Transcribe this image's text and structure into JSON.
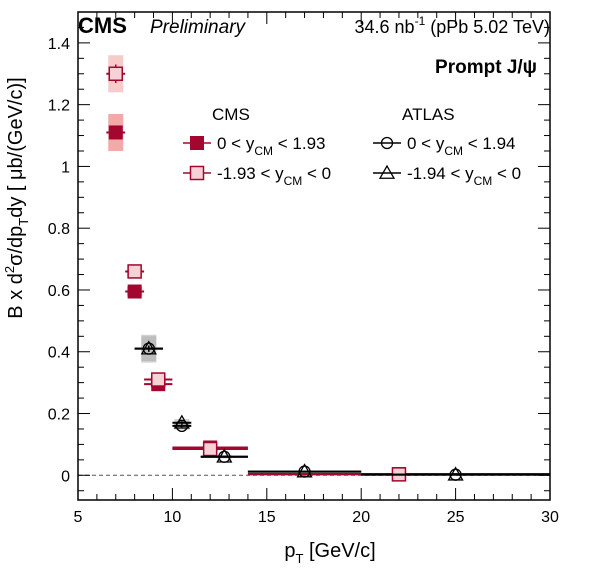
{
  "header": {
    "experiment": "CMS",
    "status": "Preliminary",
    "lumi_value": "34.6 nb",
    "lumi_exp": "-1",
    "lumi_tail": " (pPb 5.02 TeV)"
  },
  "chart_data": {
    "type": "scatter",
    "title": "Prompt J/ψ",
    "xlabel_main": "p",
    "xlabel_sub": "T",
    "xlabel_tail": " [GeV/c]",
    "ylabel_parts": [
      "B x d",
      "2",
      "σ/dp",
      "T",
      "dy [ μb/(GeV/c)]"
    ],
    "xlim": [
      5,
      30
    ],
    "ylim": [
      -0.08,
      1.5
    ],
    "x_ticks": [
      5,
      10,
      15,
      20,
      25,
      30
    ],
    "y_ticks": [
      0,
      0.2,
      0.4,
      0.6,
      0.8,
      1,
      1.2,
      1.4
    ],
    "y_tick_labels": [
      "0",
      "0.2",
      "0.4",
      "0.6",
      "0.8",
      "1",
      "1.2",
      "1.4"
    ],
    "legend": {
      "placement": "top-right",
      "cms_header": "CMS",
      "atlas_header": "ATLAS"
    },
    "colors": {
      "cms": "#a3062e",
      "cms_open_fill": "#f6d2d6",
      "cms_syst": "#f08c8c",
      "atlas_syst": "#b0b0b0"
    },
    "series": [
      {
        "name": "0 < yCM < 1.93",
        "label": {
          "pre": "0 < y",
          "sub": "CM",
          "post": " < 1.93"
        },
        "group": "CMS",
        "marker": "filled-square",
        "points": [
          {
            "x": 7,
            "xerr": [
              0.5,
              0.5
            ],
            "y": 1.11,
            "yerr": 0.02,
            "syst": 0.06
          },
          {
            "x": 8,
            "xerr": [
              0.5,
              0.5
            ],
            "y": 0.595,
            "yerr": 0.01,
            "syst": 0.015
          },
          {
            "x": 9.25,
            "xerr": [
              0.75,
              0.75
            ],
            "y": 0.295,
            "yerr": 0.005,
            "syst": 0.01
          },
          {
            "x": 12,
            "xerr": [
              2,
              2
            ],
            "y": 0.09,
            "yerr": 0.003,
            "syst": 0.004
          },
          {
            "x": 22,
            "xerr": [
              8,
              8
            ],
            "y": 0.004,
            "yerr": 0.001,
            "syst": 0.001
          }
        ]
      },
      {
        "name": "-1.93 < yCM < 0",
        "label": {
          "pre": "-1.93 < y",
          "sub": "CM",
          "post": " < 0"
        },
        "group": "CMS",
        "marker": "open-square",
        "points": [
          {
            "x": 7,
            "xerr": [
              0.5,
              0.5
            ],
            "y": 1.3,
            "yerr": 0.03,
            "syst": 0.06
          },
          {
            "x": 8,
            "xerr": [
              0.5,
              0.5
            ],
            "y": 0.66,
            "yerr": 0.01,
            "syst": 0.02
          },
          {
            "x": 9.25,
            "xerr": [
              0.75,
              0.75
            ],
            "y": 0.31,
            "yerr": 0.005,
            "syst": 0.01
          },
          {
            "x": 12,
            "xerr": [
              2,
              2
            ],
            "y": 0.085,
            "yerr": 0.003,
            "syst": 0.004
          },
          {
            "x": 22,
            "xerr": [
              8,
              8
            ],
            "y": 0.003,
            "yerr": 0.001,
            "syst": 0.001
          }
        ]
      },
      {
        "name": "0 < yCM < 1.94",
        "label": {
          "pre": "0 < y",
          "sub": "CM",
          "post": " < 1.94"
        },
        "group": "ATLAS",
        "marker": "open-circle",
        "points": [
          {
            "x": 8.75,
            "xerr": [
              0.75,
              0.75
            ],
            "y": 0.41,
            "yerr": 0.01,
            "syst": 0.04
          },
          {
            "x": 10.5,
            "xerr": [
              0.5,
              0.5
            ],
            "y": 0.16,
            "yerr": 0.005,
            "syst": 0.012
          },
          {
            "x": 12.75,
            "xerr": [
              1.25,
              1.25
            ],
            "y": 0.06,
            "yerr": 0.002,
            "syst": 0.005
          },
          {
            "x": 17,
            "xerr": [
              3,
              3
            ],
            "y": 0.012,
            "yerr": 0.001,
            "syst": 0.002
          },
          {
            "x": 25,
            "xerr": [
              5,
              5
            ],
            "y": 0.002,
            "yerr": 0.0005,
            "syst": 0.0005
          }
        ]
      },
      {
        "name": "-1.94 < yCM < 0",
        "label": {
          "pre": "-1.94 < y",
          "sub": "CM",
          "post": " < 0"
        },
        "group": "ATLAS",
        "marker": "open-triangle",
        "points": [
          {
            "x": 8.75,
            "xerr": [
              0.75,
              0.75
            ],
            "y": 0.41,
            "yerr": 0.01,
            "syst": 0.045
          },
          {
            "x": 10.5,
            "xerr": [
              0.5,
              0.5
            ],
            "y": 0.17,
            "yerr": 0.005,
            "syst": 0.012
          },
          {
            "x": 12.75,
            "xerr": [
              1.25,
              1.25
            ],
            "y": 0.06,
            "yerr": 0.002,
            "syst": 0.005
          },
          {
            "x": 17,
            "xerr": [
              3,
              3
            ],
            "y": 0.012,
            "yerr": 0.001,
            "syst": 0.002
          },
          {
            "x": 25,
            "xerr": [
              5,
              5
            ],
            "y": 0.002,
            "yerr": 0.0005,
            "syst": 0.0005
          }
        ]
      }
    ]
  }
}
